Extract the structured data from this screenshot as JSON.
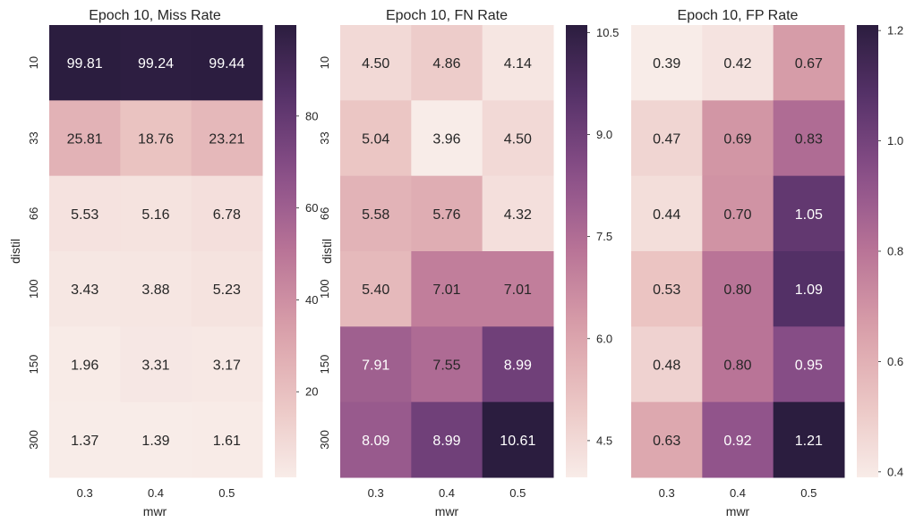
{
  "chart_data": [
    {
      "type": "heatmap",
      "title": "Epoch 10, Miss Rate",
      "xlabel": "mwr",
      "ylabel": "distil",
      "x": [
        "0.3",
        "0.4",
        "0.5"
      ],
      "y": [
        "10",
        "33",
        "66",
        "100",
        "150",
        "300"
      ],
      "values": [
        [
          99.81,
          99.24,
          99.44
        ],
        [
          25.81,
          18.76,
          23.21
        ],
        [
          5.53,
          5.16,
          6.78
        ],
        [
          3.43,
          3.88,
          5.23
        ],
        [
          1.96,
          3.31,
          3.17
        ],
        [
          1.37,
          1.39,
          1.61
        ]
      ],
      "labels": [
        [
          "99.81",
          "99.24",
          "99.44"
        ],
        [
          "25.81",
          "18.76",
          "23.21"
        ],
        [
          "5.53",
          "5.16",
          "6.78"
        ],
        [
          "3.43",
          "3.88",
          "5.23"
        ],
        [
          "1.96",
          "3.31",
          "3.17"
        ],
        [
          "1.37",
          "1.39",
          "1.61"
        ]
      ],
      "vmin": 1.37,
      "vmax": 99.81,
      "colorbar_ticks": [
        20,
        40,
        60,
        80
      ],
      "colorbar_tick_labels": [
        "20",
        "40",
        "60",
        "80"
      ]
    },
    {
      "type": "heatmap",
      "title": "Epoch 10, FN Rate",
      "xlabel": "mwr",
      "ylabel": "distil",
      "x": [
        "0.3",
        "0.4",
        "0.5"
      ],
      "y": [
        "10",
        "33",
        "66",
        "100",
        "150",
        "300"
      ],
      "values": [
        [
          4.5,
          4.86,
          4.14
        ],
        [
          5.04,
          3.96,
          4.5
        ],
        [
          5.58,
          5.76,
          4.32
        ],
        [
          5.4,
          7.01,
          7.01
        ],
        [
          7.91,
          7.55,
          8.99
        ],
        [
          8.09,
          8.99,
          10.61
        ]
      ],
      "labels": [
        [
          "4.50",
          "4.86",
          "4.14"
        ],
        [
          "5.04",
          "3.96",
          "4.50"
        ],
        [
          "5.58",
          "5.76",
          "4.32"
        ],
        [
          "5.40",
          "7.01",
          "7.01"
        ],
        [
          "7.91",
          "7.55",
          "8.99"
        ],
        [
          "8.09",
          "8.99",
          "10.61"
        ]
      ],
      "vmin": 3.96,
      "vmax": 10.61,
      "colorbar_ticks": [
        4.5,
        6.0,
        7.5,
        9.0,
        10.5
      ],
      "colorbar_tick_labels": [
        "4.5",
        "6.0",
        "7.5",
        "9.0",
        "10.5"
      ]
    },
    {
      "type": "heatmap",
      "title": "Epoch 10, FP Rate",
      "xlabel": "mwr",
      "ylabel": "",
      "x": [
        "0.3",
        "0.4",
        "0.5"
      ],
      "y": [],
      "values": [
        [
          0.39,
          0.42,
          0.67
        ],
        [
          0.47,
          0.69,
          0.83
        ],
        [
          0.44,
          0.7,
          1.05
        ],
        [
          0.53,
          0.8,
          1.09
        ],
        [
          0.48,
          0.8,
          0.95
        ],
        [
          0.63,
          0.92,
          1.21
        ]
      ],
      "labels": [
        [
          "0.39",
          "0.42",
          "0.67"
        ],
        [
          "0.47",
          "0.69",
          "0.83"
        ],
        [
          "0.44",
          "0.70",
          "1.05"
        ],
        [
          "0.53",
          "0.80",
          "1.09"
        ],
        [
          "0.48",
          "0.80",
          "0.95"
        ],
        [
          "0.63",
          "0.92",
          "1.21"
        ]
      ],
      "vmin": 0.39,
      "vmax": 1.21,
      "colorbar_ticks": [
        0.4,
        0.6,
        0.8,
        1.0,
        1.2
      ],
      "colorbar_tick_labels": [
        "0.4",
        "0.6",
        "0.8",
        "1.0",
        "1.2"
      ]
    }
  ],
  "colormap": [
    "#f8ece8",
    "#ebc5c3",
    "#d89ea9",
    "#b97497",
    "#8b5089",
    "#59336b",
    "#2b1d3f"
  ],
  "text_colors": {
    "on_light": "#262626",
    "on_dark": "#ffffff"
  }
}
